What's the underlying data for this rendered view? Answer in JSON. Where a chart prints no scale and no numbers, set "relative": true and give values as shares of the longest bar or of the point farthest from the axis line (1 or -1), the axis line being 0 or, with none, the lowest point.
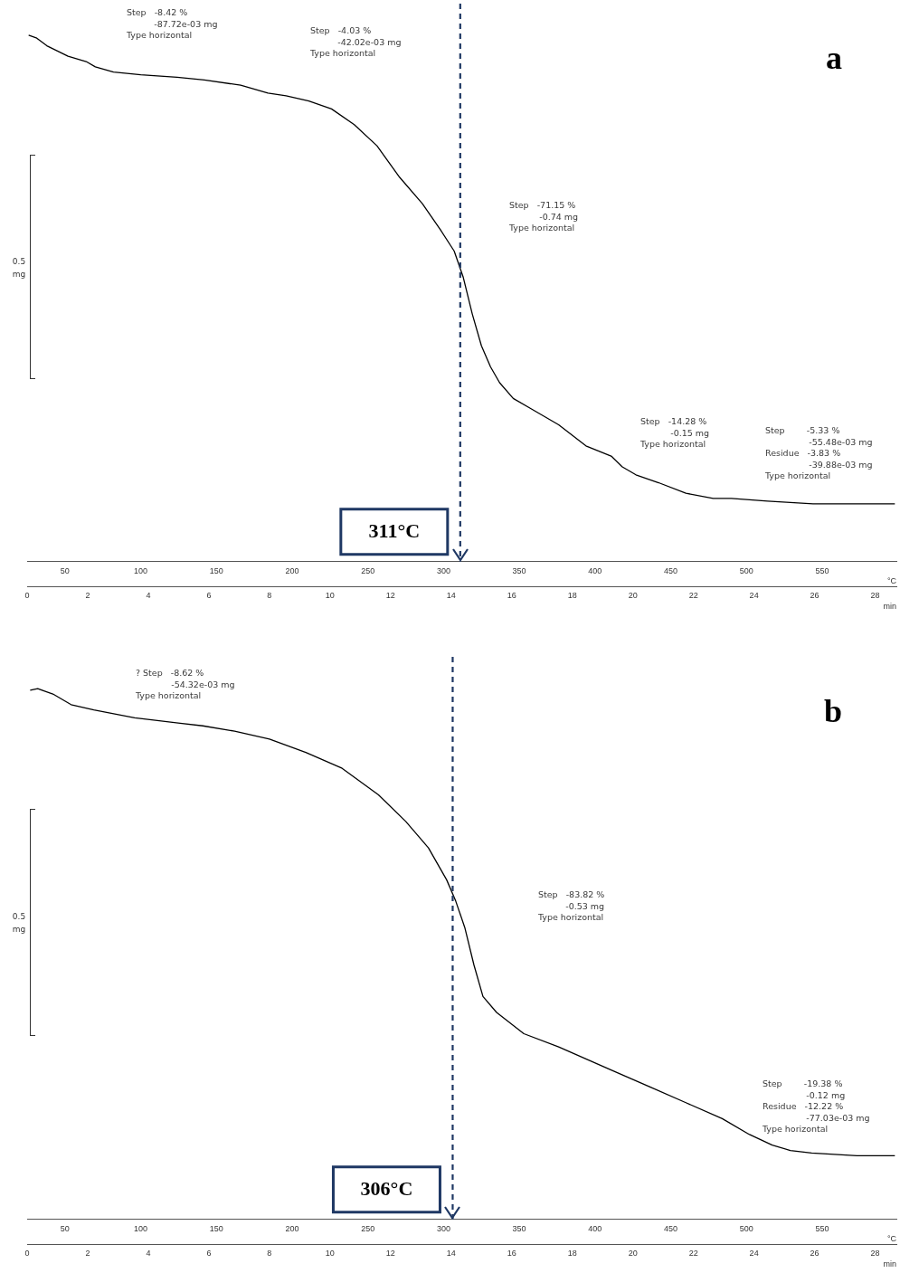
{
  "chart_data": [
    {
      "type": "line",
      "title": "a",
      "relative": true,
      "ylabel": "0.5 mg",
      "xlabel": "°C",
      "x2label": "min",
      "xlim": [
        25,
        599
      ],
      "xticks": [
        50,
        100,
        150,
        200,
        250,
        300,
        350,
        400,
        450,
        500,
        550
      ],
      "x2lim": [
        0,
        28.7
      ],
      "x2ticks": [
        0,
        2,
        4,
        6,
        8,
        10,
        12,
        14,
        16,
        18,
        20,
        22,
        24,
        26,
        28
      ],
      "grid": false,
      "legend": false,
      "marker": "none",
      "line_style": "solid",
      "series": [
        {
          "color": "#000000",
          "x": [
            26,
            31,
            38,
            52,
            64,
            70,
            82,
            100,
            124,
            142,
            166,
            184,
            196,
            211,
            226,
            241,
            256,
            271,
            286,
            298,
            307,
            313,
            319,
            325,
            331,
            337,
            346,
            358,
            376,
            394,
            411,
            418,
            427,
            442,
            460,
            478,
            490,
            514,
            544,
            574,
            598
          ],
          "values": [
            1.0,
            0.995,
            0.98,
            0.96,
            0.95,
            0.94,
            0.93,
            0.925,
            0.92,
            0.915,
            0.905,
            0.89,
            0.885,
            0.875,
            0.86,
            0.83,
            0.79,
            0.73,
            0.68,
            0.63,
            0.59,
            0.54,
            0.47,
            0.41,
            0.37,
            0.34,
            0.31,
            0.29,
            0.26,
            0.22,
            0.2,
            0.18,
            0.165,
            0.15,
            0.13,
            0.12,
            0.12,
            0.115,
            0.11,
            0.11,
            0.11
          ]
        }
      ],
      "ref_lines": [
        {
          "axis": "x",
          "value": 311,
          "label": "311°C",
          "color": "#1f3864",
          "line_style": "dashed"
        }
      ],
      "annotations": [
        "Step   -8.42 %\n          -87.72e-03 mg\nType horizontal",
        "Step   -4.03 %\n          -42.02e-03 mg\nType horizontal",
        "Step   -71.15 %\n           -0.74 mg\nType horizontal",
        "Step   -14.28 %\n           -0.15 mg\nType horizontal",
        "Step        -5.33 %\n                -55.48e-03 mg\nResidue   -3.83 %\n                -39.88e-03 mg\nType horizontal"
      ]
    },
    {
      "type": "line",
      "title": "b",
      "relative": true,
      "ylabel": "0.5 mg",
      "xlabel": "°C",
      "x2label": "min",
      "xlim": [
        25,
        599
      ],
      "xticks": [
        50,
        100,
        150,
        200,
        250,
        300,
        350,
        400,
        450,
        500,
        550
      ],
      "x2lim": [
        0,
        28.7
      ],
      "x2ticks": [
        0,
        2,
        4,
        6,
        8,
        10,
        12,
        14,
        16,
        18,
        20,
        22,
        24,
        26,
        28
      ],
      "grid": false,
      "legend": false,
      "marker": "none",
      "line_style": "solid",
      "series": [
        {
          "color": "#000000",
          "x": [
            27,
            32,
            42,
            54,
            69,
            96,
            126,
            141,
            162,
            185,
            209,
            233,
            257,
            275,
            290,
            302,
            308,
            314,
            320,
            326,
            335,
            353,
            376,
            412,
            436,
            460,
            484,
            502,
            517,
            529,
            543,
            573,
            598
          ],
          "values": [
            0.997,
            1.0,
            0.99,
            0.97,
            0.96,
            0.945,
            0.935,
            0.93,
            0.92,
            0.905,
            0.88,
            0.85,
            0.8,
            0.75,
            0.7,
            0.64,
            0.6,
            0.55,
            0.48,
            0.42,
            0.39,
            0.35,
            0.325,
            0.28,
            0.25,
            0.22,
            0.19,
            0.16,
            0.14,
            0.13,
            0.125,
            0.12,
            0.12
          ]
        }
      ],
      "ref_lines": [
        {
          "axis": "x",
          "value": 306,
          "label": "306°C",
          "color": "#1f3864",
          "line_style": "dashed"
        }
      ],
      "annotations": [
        "? Step   -8.62 %\n             -54.32e-03 mg\nType horizontal",
        "Step   -83.82 %\n          -0.53 mg\nType horizontal",
        "Step        -19.38 %\n                -0.12 mg\nResidue   -12.22 %\n                -77.03e-03 mg\nType horizontal"
      ]
    }
  ]
}
